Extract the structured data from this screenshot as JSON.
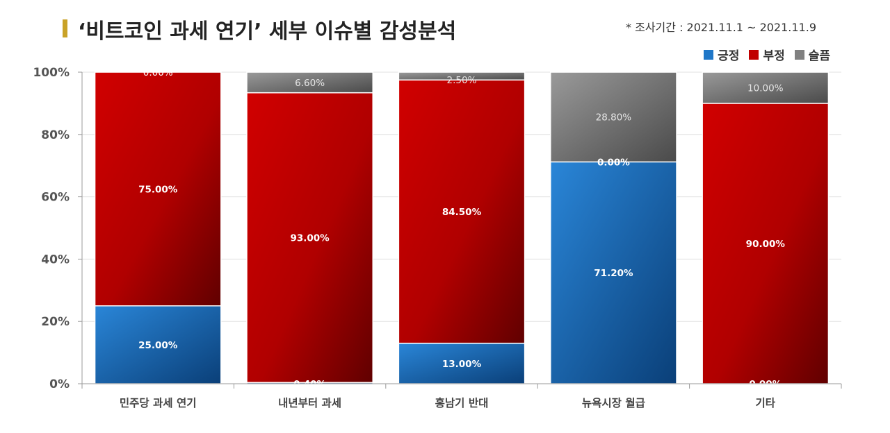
{
  "title": "‘비트코인 과세 연기’ 세부 이슈별 감성분석",
  "period": "* 조사기간 : 2021.11.1 ~ 2021.11.9",
  "legend": [
    {
      "name": "긍정",
      "color": "#1f77c8"
    },
    {
      "name": "부정",
      "color": "#c00000"
    },
    {
      "name": "슬픔",
      "color": "#808080"
    }
  ],
  "chart_data": {
    "type": "bar",
    "stacked": true,
    "categories": [
      "민주당 과세 연기",
      "내년부터 과세",
      "홍남기 반대",
      "뉴욕시장 월급",
      "기타"
    ],
    "series": [
      {
        "name": "긍정",
        "values": [
          25.0,
          0.4,
          13.0,
          71.2,
          0.0
        ],
        "labels": [
          "25.00%",
          "0.40%",
          "13.00%",
          "71.20%",
          "0.00%"
        ]
      },
      {
        "name": "부정",
        "values": [
          75.0,
          93.0,
          84.5,
          0.0,
          90.0
        ],
        "labels": [
          "75.00%",
          "93.00%",
          "84.50%",
          "0.00%",
          "90.00%"
        ]
      },
      {
        "name": "슬픔",
        "values": [
          0.0,
          6.6,
          2.5,
          28.8,
          10.0
        ],
        "labels": [
          "0.00%",
          "6.60%",
          "2.50%",
          "28.80%",
          "10.00%"
        ]
      }
    ],
    "ylim": [
      0,
      100
    ],
    "yticks": [
      "0%",
      "20%",
      "40%",
      "60%",
      "80%",
      "100%"
    ],
    "grid": true,
    "legend_position": "top-right"
  }
}
